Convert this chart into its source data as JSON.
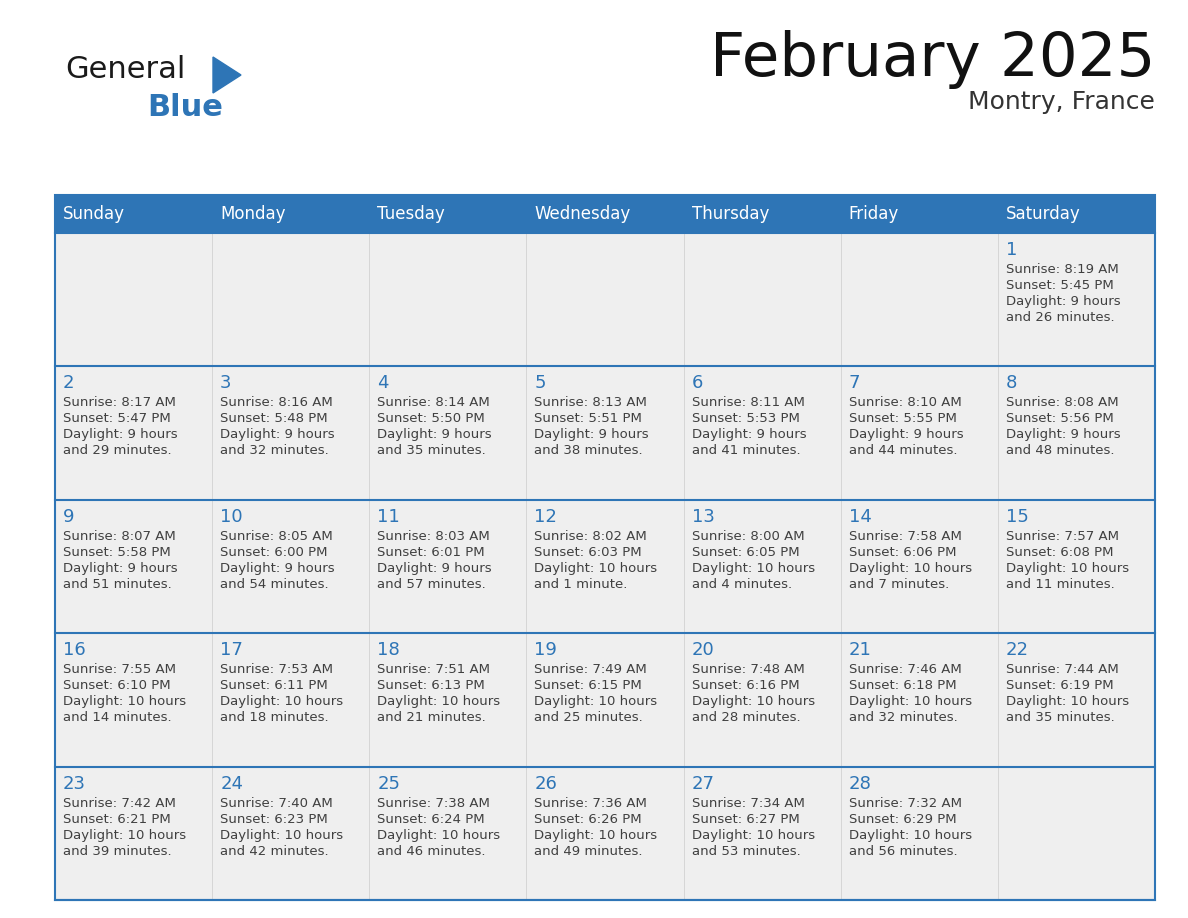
{
  "title": "February 2025",
  "subtitle": "Montry, France",
  "header_bg": "#2E75B6",
  "header_text_color": "#FFFFFF",
  "days_of_week": [
    "Sunday",
    "Monday",
    "Tuesday",
    "Wednesday",
    "Thursday",
    "Friday",
    "Saturday"
  ],
  "cell_bg": "#EFEFEF",
  "cell_bg2": "#FFFFFF",
  "border_color": "#2E75B6",
  "day_number_color": "#2E75B6",
  "info_text_color": "#404040",
  "general_text": "General",
  "blue_text": "Blue",
  "general_color": "#1a1a1a",
  "blue_color": "#2E75B6",
  "calendar_data": [
    [
      null,
      null,
      null,
      null,
      null,
      null,
      1
    ],
    [
      2,
      3,
      4,
      5,
      6,
      7,
      8
    ],
    [
      9,
      10,
      11,
      12,
      13,
      14,
      15
    ],
    [
      16,
      17,
      18,
      19,
      20,
      21,
      22
    ],
    [
      23,
      24,
      25,
      26,
      27,
      28,
      null
    ]
  ],
  "sunrise_data": {
    "1": "8:19 AM",
    "2": "8:17 AM",
    "3": "8:16 AM",
    "4": "8:14 AM",
    "5": "8:13 AM",
    "6": "8:11 AM",
    "7": "8:10 AM",
    "8": "8:08 AM",
    "9": "8:07 AM",
    "10": "8:05 AM",
    "11": "8:03 AM",
    "12": "8:02 AM",
    "13": "8:00 AM",
    "14": "7:58 AM",
    "15": "7:57 AM",
    "16": "7:55 AM",
    "17": "7:53 AM",
    "18": "7:51 AM",
    "19": "7:49 AM",
    "20": "7:48 AM",
    "21": "7:46 AM",
    "22": "7:44 AM",
    "23": "7:42 AM",
    "24": "7:40 AM",
    "25": "7:38 AM",
    "26": "7:36 AM",
    "27": "7:34 AM",
    "28": "7:32 AM"
  },
  "sunset_data": {
    "1": "5:45 PM",
    "2": "5:47 PM",
    "3": "5:48 PM",
    "4": "5:50 PM",
    "5": "5:51 PM",
    "6": "5:53 PM",
    "7": "5:55 PM",
    "8": "5:56 PM",
    "9": "5:58 PM",
    "10": "6:00 PM",
    "11": "6:01 PM",
    "12": "6:03 PM",
    "13": "6:05 PM",
    "14": "6:06 PM",
    "15": "6:08 PM",
    "16": "6:10 PM",
    "17": "6:11 PM",
    "18": "6:13 PM",
    "19": "6:15 PM",
    "20": "6:16 PM",
    "21": "6:18 PM",
    "22": "6:19 PM",
    "23": "6:21 PM",
    "24": "6:23 PM",
    "25": "6:24 PM",
    "26": "6:26 PM",
    "27": "6:27 PM",
    "28": "6:29 PM"
  },
  "daylight_line1": {
    "1": "9 hours",
    "2": "9 hours",
    "3": "9 hours",
    "4": "9 hours",
    "5": "9 hours",
    "6": "9 hours",
    "7": "9 hours",
    "8": "9 hours",
    "9": "9 hours",
    "10": "9 hours",
    "11": "9 hours",
    "12": "10 hours",
    "13": "10 hours",
    "14": "10 hours",
    "15": "10 hours",
    "16": "10 hours",
    "17": "10 hours",
    "18": "10 hours",
    "19": "10 hours",
    "20": "10 hours",
    "21": "10 hours",
    "22": "10 hours",
    "23": "10 hours",
    "24": "10 hours",
    "25": "10 hours",
    "26": "10 hours",
    "27": "10 hours",
    "28": "10 hours"
  },
  "daylight_line2": {
    "1": "and 26 minutes.",
    "2": "and 29 minutes.",
    "3": "and 32 minutes.",
    "4": "and 35 minutes.",
    "5": "and 38 minutes.",
    "6": "and 41 minutes.",
    "7": "and 44 minutes.",
    "8": "and 48 minutes.",
    "9": "and 51 minutes.",
    "10": "and 54 minutes.",
    "11": "and 57 minutes.",
    "12": "and 1 minute.",
    "13": "and 4 minutes.",
    "14": "and 7 minutes.",
    "15": "and 11 minutes.",
    "16": "and 14 minutes.",
    "17": "and 18 minutes.",
    "18": "and 21 minutes.",
    "19": "and 25 minutes.",
    "20": "and 28 minutes.",
    "21": "and 32 minutes.",
    "22": "and 35 minutes.",
    "23": "and 39 minutes.",
    "24": "and 42 minutes.",
    "25": "and 46 minutes.",
    "26": "and 49 minutes.",
    "27": "and 53 minutes.",
    "28": "and 56 minutes."
  }
}
